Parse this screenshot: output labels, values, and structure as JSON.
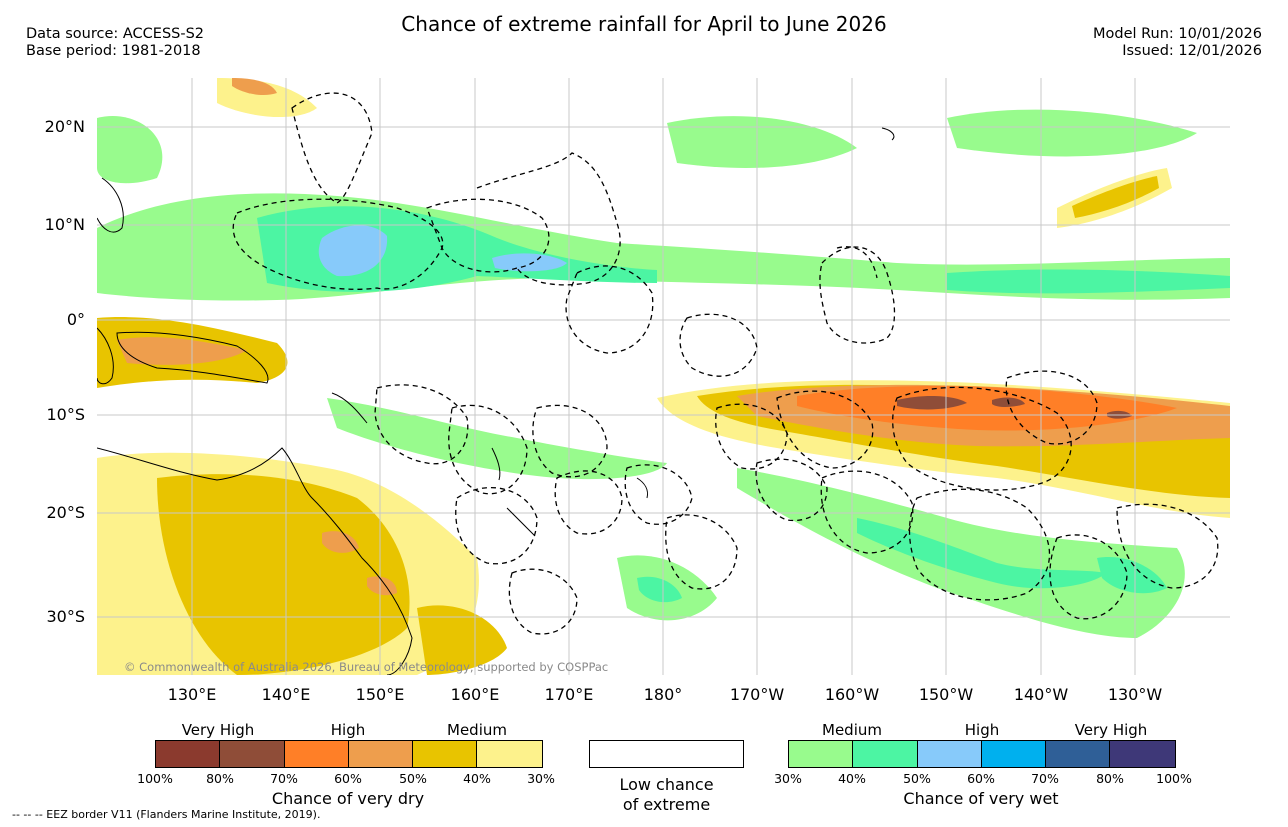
{
  "header": {
    "title": "Chance of extreme rainfall for April to June 2026",
    "source_line": "Data source: ACCESS-S2",
    "base_line": "Base period: 1981-2018",
    "model_run": "Model Run: 10/01/2026",
    "issued": "Issued: 12/01/2026"
  },
  "map": {
    "lat_labels": [
      "20°N",
      "10°N",
      "0°",
      "10°S",
      "20°S",
      "30°S"
    ],
    "lon_labels": [
      "130°E",
      "140°E",
      "150°E",
      "160°E",
      "170°E",
      "180°",
      "170°W",
      "160°W",
      "150°W",
      "140°W",
      "130°W"
    ],
    "copyright": "© Commonwealth of Australia 2026, Bureau of Meteorology, supported by COSPPac"
  },
  "legend": {
    "dry": {
      "categories": [
        "Very High",
        "High",
        "Medium"
      ],
      "colors": [
        "#8b3a2e",
        "#8f4d38",
        "#ff7f27",
        "#ee9e4d",
        "#e8c400",
        "#fdf28c"
      ],
      "ticks": [
        "100%",
        "80%",
        "70%",
        "60%",
        "50%",
        "40%",
        "30%"
      ],
      "caption": "Chance of very dry"
    },
    "low": {
      "line1": "Low chance",
      "line2": "of extreme"
    },
    "wet": {
      "categories": [
        "Medium",
        "High",
        "Very High"
      ],
      "colors": [
        "#98fb8d",
        "#4cf5a3",
        "#87cafa",
        "#00b0ee",
        "#2f5f97",
        "#3e3878"
      ],
      "ticks": [
        "30%",
        "40%",
        "50%",
        "60%",
        "70%",
        "80%",
        "100%"
      ],
      "caption": "Chance of very wet"
    }
  },
  "footer": "--  --  -- EEZ border V11 (Flanders Marine Institute, 2019)."
}
